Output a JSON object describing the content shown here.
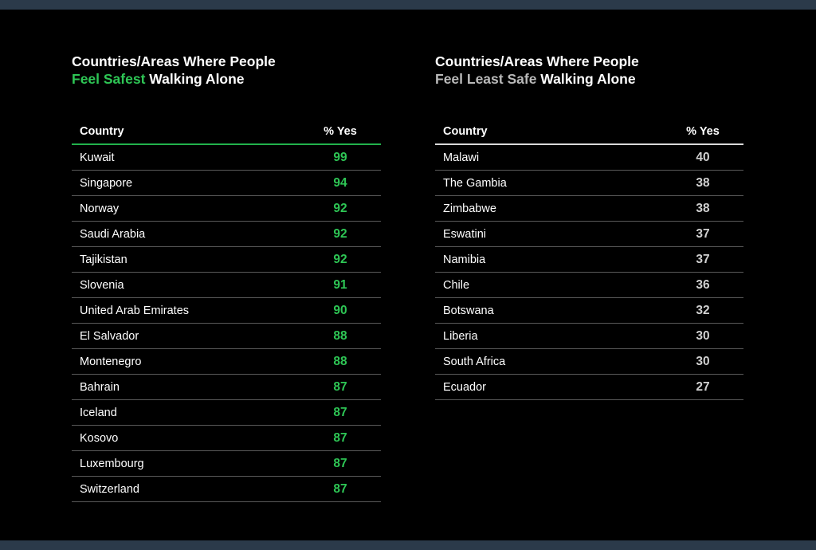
{
  "chart_data": [
    {
      "type": "table",
      "title_parts": [
        "Countries/Areas Where People",
        "Feel Safest",
        "Walking Alone"
      ],
      "columns": [
        "Country",
        "% Yes"
      ],
      "rows": [
        {
          "country": "Kuwait",
          "value": 99
        },
        {
          "country": "Singapore",
          "value": 94
        },
        {
          "country": "Norway",
          "value": 92
        },
        {
          "country": "Saudi Arabia",
          "value": 92
        },
        {
          "country": "Tajikistan",
          "value": 92
        },
        {
          "country": "Slovenia",
          "value": 91
        },
        {
          "country": "United Arab Emirates",
          "value": 90
        },
        {
          "country": "El Salvador",
          "value": 88
        },
        {
          "country": "Montenegro",
          "value": 88
        },
        {
          "country": "Bahrain",
          "value": 87
        },
        {
          "country": "Iceland",
          "value": 87
        },
        {
          "country": "Kosovo",
          "value": 87
        },
        {
          "country": "Luxembourg",
          "value": 87
        },
        {
          "country": "Switzerland",
          "value": 87
        }
      ],
      "accent_color": "#2ec655"
    },
    {
      "type": "table",
      "title_parts": [
        "Countries/Areas Where People",
        "Feel Least Safe",
        "Walking Alone"
      ],
      "columns": [
        "Country",
        "% Yes"
      ],
      "rows": [
        {
          "country": "Malawi",
          "value": 40
        },
        {
          "country": "The Gambia",
          "value": 38
        },
        {
          "country": "Zimbabwe",
          "value": 38
        },
        {
          "country": "Eswatini",
          "value": 37
        },
        {
          "country": "Namibia",
          "value": 37
        },
        {
          "country": "Chile",
          "value": 36
        },
        {
          "country": "Botswana",
          "value": 32
        },
        {
          "country": "Liberia",
          "value": 30
        },
        {
          "country": "South Africa",
          "value": 30
        },
        {
          "country": "Ecuador",
          "value": 27
        }
      ],
      "accent_color": "#b9b9b9"
    }
  ]
}
